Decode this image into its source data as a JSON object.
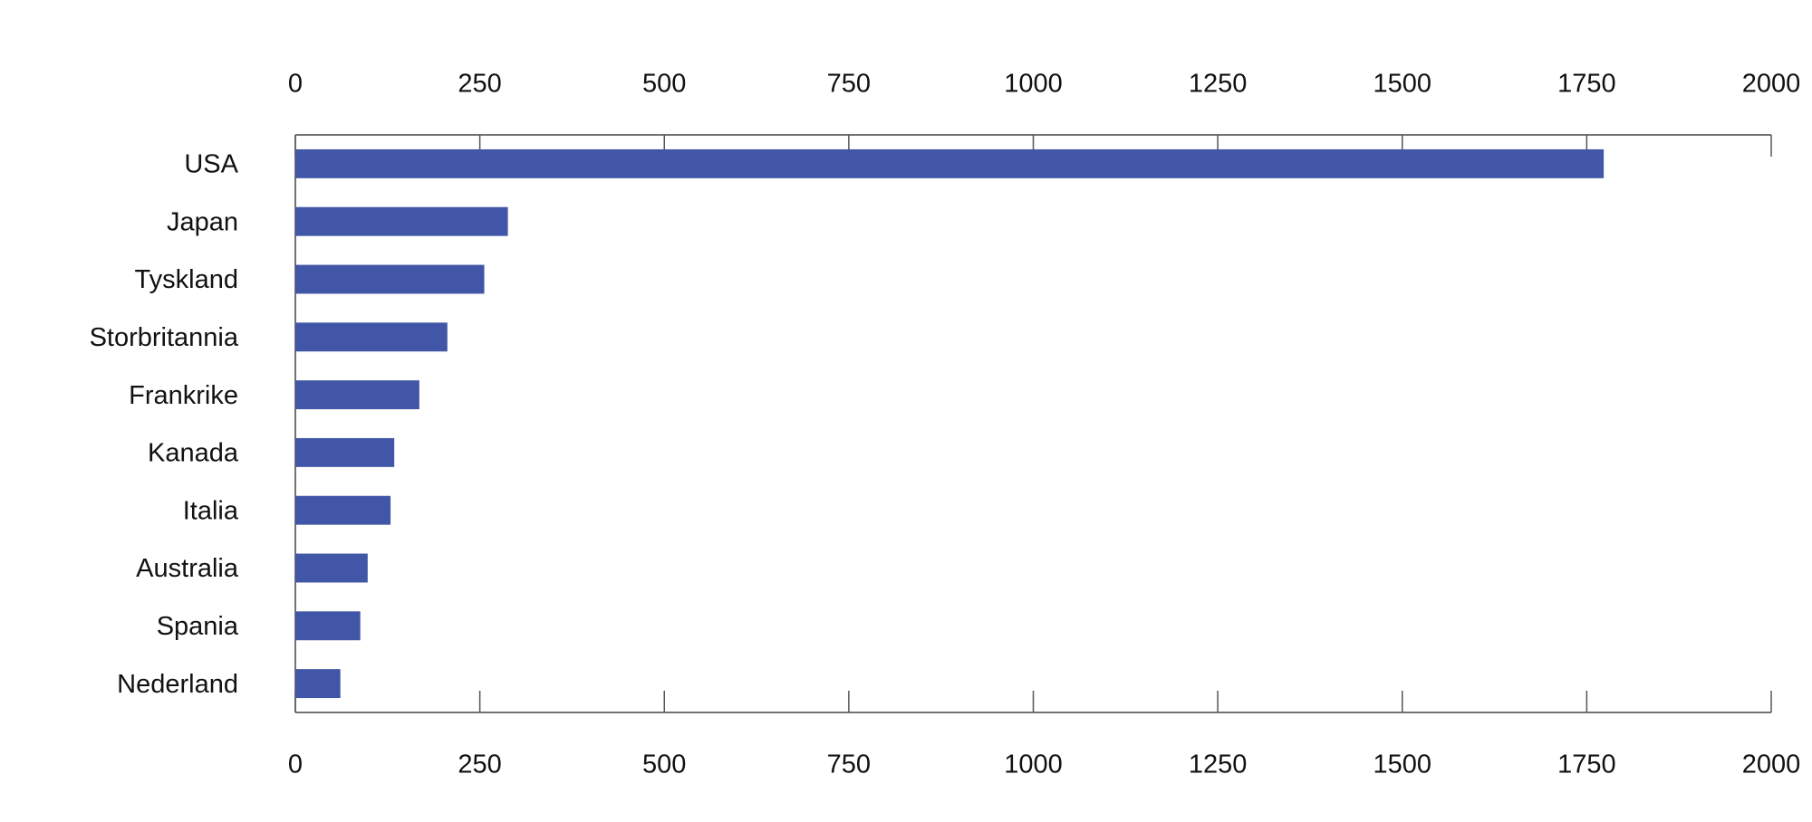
{
  "chart_data": {
    "type": "hbar",
    "categories": [
      "USA",
      "Japan",
      "Tyskland",
      "Storbritannia",
      "Frankrike",
      "Kanada",
      "Italia",
      "Australia",
      "Spania",
      "Nederland"
    ],
    "values": [
      1773,
      288,
      256,
      206,
      168,
      134,
      129,
      98,
      88,
      61
    ],
    "color": "#4156a6",
    "xlim": [
      0,
      2000
    ],
    "xticks": [
      0,
      250,
      500,
      750,
      1000,
      1250,
      1500,
      1750,
      2000
    ],
    "grid": false
  }
}
